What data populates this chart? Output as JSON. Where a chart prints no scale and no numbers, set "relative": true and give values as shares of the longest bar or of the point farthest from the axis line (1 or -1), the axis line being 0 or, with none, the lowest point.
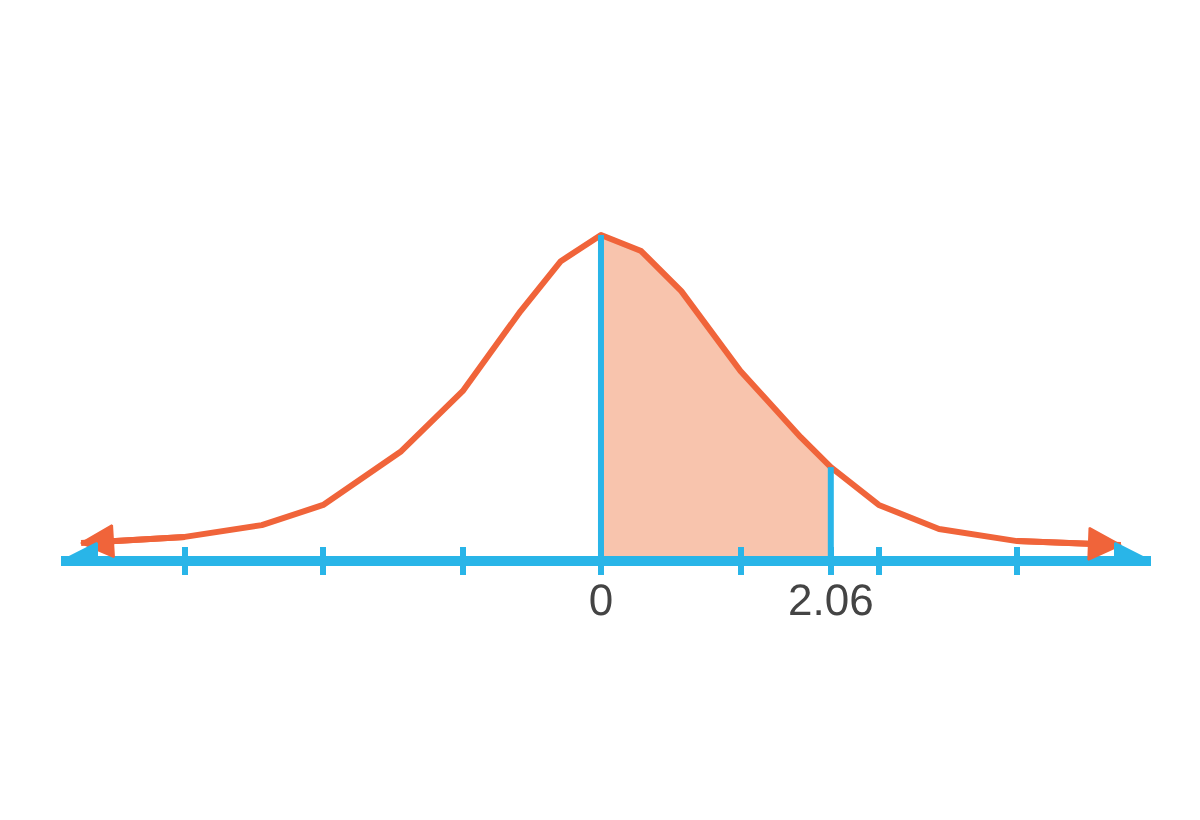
{
  "chart_data": {
    "type": "line",
    "relative": true,
    "xlim": [
      -4.84,
      4.93
    ],
    "xticks": [
      {
        "value": -3.73,
        "label": null
      },
      {
        "value": -2.49,
        "label": null
      },
      {
        "value": -1.24,
        "label": null
      },
      0,
      {
        "value": 1.25,
        "label": null
      },
      2.06,
      {
        "value": 2.49,
        "label": null
      },
      {
        "value": 3.73,
        "label": null
      }
    ],
    "series": [
      {
        "type": "area",
        "color": "#f8c4ad",
        "x": [
          0,
          0.36,
          0.72,
          1.25,
          1.79,
          2.06
        ],
        "values": [
          1,
          0.951,
          0.828,
          0.583,
          0.38,
          0.288
        ]
      },
      {
        "color": "#f0643a",
        "x": [
          -4.66,
          -3.73,
          -3.04,
          -2.49,
          -1.79,
          -1.24,
          -0.72,
          -0.36,
          0,
          0.36,
          0.72,
          1.25,
          1.79,
          2.06,
          2.49,
          3.03,
          3.73,
          4.66
        ],
        "values": [
          0.055,
          0.074,
          0.11,
          0.172,
          0.337,
          0.521,
          0.767,
          0.92,
          1,
          0.951,
          0.828,
          0.583,
          0.38,
          0.288,
          0.172,
          0.098,
          0.061,
          0.049
        ]
      }
    ],
    "ref_lines": [
      {
        "axis": "x",
        "value": 0,
        "color": "#29b5e8"
      },
      {
        "axis": "x",
        "value": 2.06,
        "color": "#29b5e8"
      }
    ],
    "grid": false,
    "marker": "none",
    "line_style": "solid"
  }
}
